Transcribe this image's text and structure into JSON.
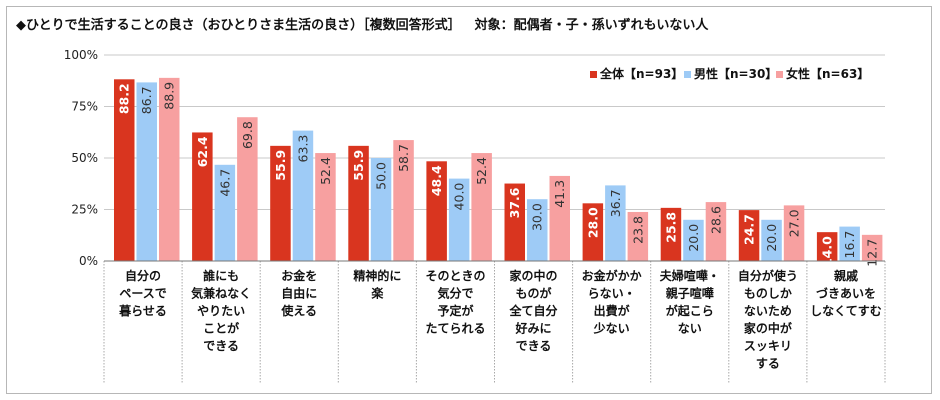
{
  "title": "◆ひとりで生活することの良さ（おひとりさま生活の良さ）［複数回答形式］",
  "subtitle": "対象：配偶者・子・孫いずれもいない人",
  "chart_data": {
    "type": "bar",
    "ylim": [
      0,
      100
    ],
    "y_ticks": [
      0,
      25,
      50,
      75,
      100
    ],
    "y_tick_labels": [
      "0%",
      "25%",
      "50%",
      "75%",
      "100%"
    ],
    "legend_position": "top-right",
    "categories": [
      [
        "自分の",
        "ペースで",
        "暮らせる"
      ],
      [
        "誰にも",
        "気兼ねなく",
        "やりたい",
        "ことが",
        "できる"
      ],
      [
        "お金を",
        "自由に",
        "使える"
      ],
      [
        "精神的に",
        "楽"
      ],
      [
        "そのときの",
        "気分で",
        "予定が",
        "たてられる"
      ],
      [
        "家の中の",
        "ものが",
        "全て自分",
        "好みに",
        "できる"
      ],
      [
        "お金がかか",
        "らない・",
        "出費が",
        "少ない"
      ],
      [
        "夫婦喧嘩・",
        "親子喧嘩",
        "が起こら",
        "ない"
      ],
      [
        "自分が使う",
        "ものしか",
        "ないため",
        "家の中が",
        "スッキリ",
        "する"
      ],
      [
        "親戚",
        "づきあいを",
        "しなくてすむ"
      ]
    ],
    "series": [
      {
        "name": "全体【n=93】",
        "color": "#d9351f",
        "values": [
          88.2,
          62.4,
          55.9,
          55.9,
          48.4,
          37.6,
          28.0,
          25.8,
          24.7,
          14.0
        ]
      },
      {
        "name": "男性【n=30】",
        "color": "#9ecbf6",
        "values": [
          86.7,
          46.7,
          63.3,
          50.0,
          40.0,
          30.0,
          36.7,
          20.0,
          20.0,
          16.7
        ]
      },
      {
        "name": "女性【n=63】",
        "color": "#f7a0a0",
        "values": [
          88.9,
          69.8,
          52.4,
          58.7,
          52.4,
          41.3,
          23.8,
          28.6,
          27.0,
          12.7
        ]
      }
    ]
  }
}
